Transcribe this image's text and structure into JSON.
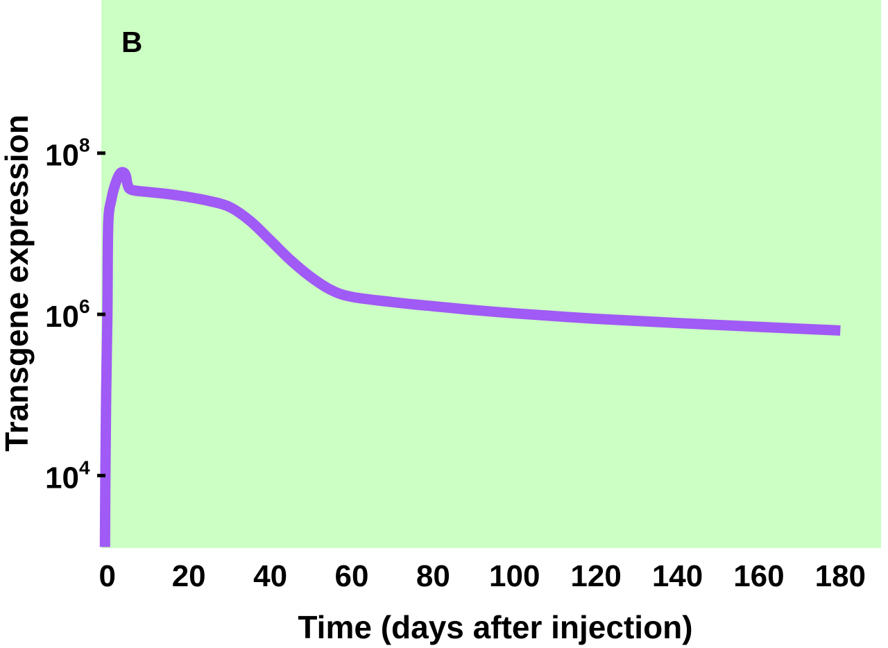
{
  "chart_data": {
    "type": "line",
    "panel_label": "B",
    "xlabel": "Time (days after injection)",
    "ylabel": "Transgene expression",
    "x_ticks": [
      0,
      20,
      40,
      60,
      80,
      100,
      120,
      140,
      160,
      180
    ],
    "x_tick_labels": [
      "0",
      "20",
      "40",
      "60",
      "80",
      "100",
      "120",
      "140",
      "160",
      "180"
    ],
    "y_ticks": [
      {
        "value": 10000,
        "base": "10",
        "exp": "4"
      },
      {
        "value": 1000000,
        "base": "10",
        "exp": "6"
      },
      {
        "value": 100000000,
        "base": "10",
        "exp": "8"
      }
    ],
    "xlim": [
      -1.5,
      190
    ],
    "ylim_log10": [
      3.1,
      9.9
    ],
    "yscale": "log",
    "grid": false,
    "background_color": "#ccffc4",
    "series": [
      {
        "name": "Transgene expression",
        "color": "#a05af5",
        "x": [
          -0.6,
          -0.5,
          -0.3,
          0,
          0.2,
          1,
          2,
          3,
          3.8,
          4.5,
          5,
          6,
          10,
          15,
          20,
          25,
          30,
          35,
          40,
          45,
          50,
          55,
          60,
          70,
          80,
          90,
          100,
          120,
          140,
          160,
          180
        ],
        "y": [
          1300,
          10000,
          100000,
          1000000,
          13000000,
          27000000,
          42000000,
          55000000,
          58000000,
          53000000,
          40000000,
          35000000,
          33000000,
          31000000,
          28500000,
          25500000,
          21500000,
          14500000,
          8300000,
          4700000,
          2900000,
          2000000,
          1650000,
          1420000,
          1260000,
          1130000,
          1030000,
          880000,
          780000,
          700000,
          630000
        ]
      }
    ]
  }
}
